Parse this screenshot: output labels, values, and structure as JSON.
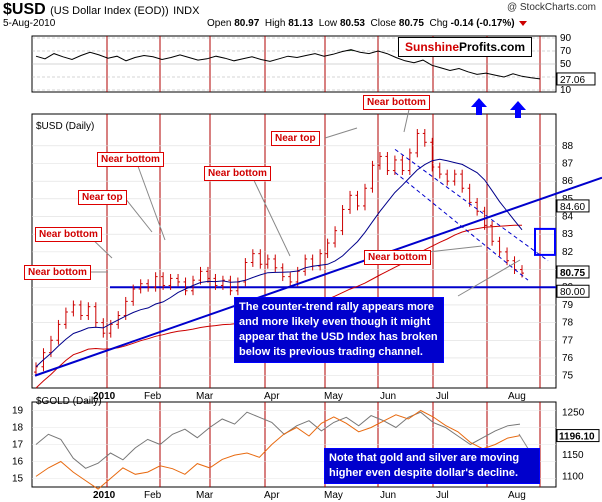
{
  "header": {
    "symbol": "$USD",
    "symbol_desc": "(US Dollar Index (EOD))",
    "exchange": "INDX",
    "date": "5-Aug-2010",
    "open_label": "Open",
    "open": "80.97",
    "high_label": "High",
    "high": "81.13",
    "low_label": "Low",
    "low": "80.53",
    "close_label": "Close",
    "close": "80.75",
    "chg_label": "Chg",
    "chg": "-0.14 (-0.17%)",
    "copyright": "@ StockCharts.com"
  },
  "brand": {
    "part1": "Sunshine",
    "part2": "Profits.com"
  },
  "panels": {
    "main_title": "$USD (Daily)",
    "gold_title": "$GOLD (Daily)"
  },
  "labels": [
    {
      "text": "Near bottom",
      "id": "label-near-bottom-1"
    },
    {
      "text": "Near bottom",
      "id": "label-near-bottom-2"
    },
    {
      "text": "Near top",
      "id": "label-near-top-1"
    },
    {
      "text": "Near bottom",
      "id": "label-near-bottom-3"
    },
    {
      "text": "Near bottom",
      "id": "label-near-bottom-4"
    },
    {
      "text": "Near top",
      "id": "label-near-top-2"
    },
    {
      "text": "Near bottom",
      "id": "label-near-bottom-5"
    },
    {
      "text": "Near bottom",
      "id": "label-near-bottom-6"
    }
  ],
  "notes": {
    "note1": [
      "The counter-trend rally appears more",
      "and more likely even though it might",
      "appear that the USD Index has broken",
      "below its previous trading channel."
    ],
    "note2": [
      "Note that gold and silver are moving",
      "higher even despite dollar's decline."
    ]
  },
  "colors": {
    "price": "#cc0000",
    "trend": "#0000cc",
    "ma_long": "#cc0000",
    "ma_short": "#00008b",
    "gold": "#777777",
    "silver_ratio": "#e86a10",
    "rsi_fill": "#558855"
  },
  "chart_data": [
    {
      "type": "line",
      "name": "RSI",
      "y_ticks": [
        90,
        70,
        50,
        30,
        10
      ],
      "last_value_label": "27.06",
      "values": [
        62,
        58,
        66,
        61,
        57,
        63,
        68,
        64,
        59,
        62,
        55,
        60,
        63,
        61,
        57,
        60,
        64,
        60,
        56,
        58,
        62,
        59,
        55,
        58,
        61,
        57,
        54,
        58,
        62,
        60,
        63,
        66,
        62,
        65,
        69,
        72,
        68,
        66,
        70,
        66,
        60,
        55,
        52,
        56,
        48,
        44,
        40,
        43,
        38,
        34,
        36,
        33,
        30,
        35,
        31,
        29,
        27
      ]
    },
    {
      "type": "line",
      "name": "$USD (Daily)",
      "x_month_labels": [
        "2010",
        "Feb",
        "Mar",
        "Apr",
        "May",
        "Jun",
        "Jul",
        "Aug"
      ],
      "y_ticks": [
        75,
        76,
        77,
        78,
        79,
        80,
        81,
        82,
        83,
        84,
        85,
        86,
        87,
        88
      ],
      "ylim": [
        74.3,
        89.8
      ],
      "value_labels": [
        "84.60",
        "80.75",
        "80.00"
      ],
      "close": [
        75.5,
        76.3,
        77.0,
        77.9,
        78.6,
        79.0,
        78.4,
        78.9,
        78.0,
        77.4,
        77.9,
        78.4,
        79.2,
        79.9,
        80.2,
        80.0,
        80.6,
        80.1,
        80.5,
        80.3,
        79.8,
        80.4,
        80.9,
        80.5,
        80.1,
        80.4,
        79.8,
        80.3,
        81.4,
        81.9,
        81.3,
        81.6,
        81.1,
        80.6,
        80.3,
        80.9,
        81.6,
        81.2,
        81.9,
        82.5,
        83.2,
        84.4,
        85.2,
        84.6,
        85.6,
        86.9,
        87.4,
        86.6,
        87.2,
        86.6,
        87.6,
        88.7,
        88.2,
        86.8,
        86.4,
        86.0,
        86.4,
        85.6,
        84.8,
        84.3,
        83.5,
        82.6,
        82.0,
        81.5,
        81.0,
        80.8
      ],
      "annotations": [
        "Near bottom",
        "Near bottom",
        "Near top",
        "Near bottom",
        "Near bottom",
        "Near top",
        "Near bottom",
        "Near bottom"
      ]
    },
    {
      "type": "line",
      "name": "$GOLD (Daily)",
      "x_month_labels": [
        "2010",
        "Feb",
        "Mar",
        "Apr",
        "May",
        "Jun",
        "Jul",
        "Aug"
      ],
      "y_ticks_left": [
        19,
        18,
        17,
        16,
        15
      ],
      "y_ticks_right": [
        1250,
        1200,
        1150,
        1100
      ],
      "last_value_label": "1196.10",
      "series": [
        {
          "values": [
            1100,
            1120,
            1135,
            1110,
            1090,
            1070,
            1095,
            1120,
            1105,
            1110,
            1125,
            1118,
            1105,
            1130,
            1120,
            1140,
            1150,
            1155,
            1145,
            1175,
            1200,
            1215,
            1195,
            1225,
            1240,
            1225,
            1205,
            1215,
            1230,
            1245,
            1235,
            1255,
            1240,
            1220,
            1205,
            1180,
            1165,
            1175,
            1190,
            1196
          ]
        },
        {
          "values": [
            17.0,
            17.6,
            17.3,
            16.2,
            15.6,
            15.9,
            16.5,
            16.1,
            16.8,
            17.3,
            17.0,
            17.6,
            17.9,
            17.4,
            18.0,
            18.5,
            18.2,
            18.9,
            18.6,
            18.3,
            17.6,
            18.1,
            18.4,
            17.8,
            18.3,
            18.6,
            18.1,
            18.7,
            18.4,
            18.0,
            18.6,
            18.9,
            18.3,
            18.0,
            17.5,
            17.0,
            17.4,
            17.8,
            18.1,
            18.2
          ]
        }
      ]
    }
  ]
}
